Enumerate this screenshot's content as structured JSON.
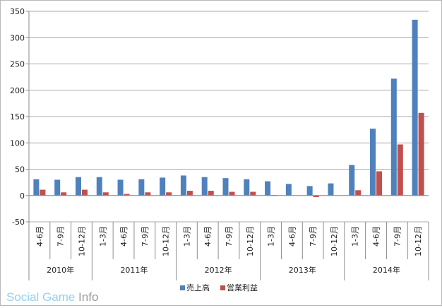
{
  "chart_data": {
    "type": "bar",
    "categories": [
      [
        "4-6月",
        "2010年"
      ],
      [
        "7-9月",
        "2010年"
      ],
      [
        "10-12月",
        "2010年"
      ],
      [
        "1-3月",
        "2011年"
      ],
      [
        "4-6月",
        "2011年"
      ],
      [
        "7-9月",
        "2011年"
      ],
      [
        "10-12月",
        "2011年"
      ],
      [
        "1-3月",
        "2012年"
      ],
      [
        "4-6月",
        "2012年"
      ],
      [
        "7-9月",
        "2012年"
      ],
      [
        "10-12月",
        "2012年"
      ],
      [
        "1-3月",
        "2013年"
      ],
      [
        "4-6月",
        "2013年"
      ],
      [
        "7-9月",
        "2013年"
      ],
      [
        "10-12月",
        "2013年"
      ],
      [
        "1-3月",
        "2014年"
      ],
      [
        "4-6月",
        "2014年"
      ],
      [
        "7-9月",
        "2014年"
      ],
      [
        "10-12月",
        "2014年"
      ]
    ],
    "quarters": [
      "4-6月",
      "7-9月",
      "10-12月",
      "1-3月",
      "4-6月",
      "7-9月",
      "10-12月",
      "1-3月",
      "4-6月",
      "7-9月",
      "10-12月",
      "1-3月",
      "4-6月",
      "7-9月",
      "10-12月",
      "1-3月",
      "4-6月",
      "7-9月",
      "10-12月"
    ],
    "years": [
      {
        "label": "2010年",
        "count": 3
      },
      {
        "label": "2011年",
        "count": 4
      },
      {
        "label": "2012年",
        "count": 4
      },
      {
        "label": "2013年",
        "count": 4
      },
      {
        "label": "2014年",
        "count": 4
      }
    ],
    "series": [
      {
        "name": "売上高",
        "color": "#4f81bd",
        "values": [
          31,
          30,
          35,
          35,
          30,
          31,
          34,
          38,
          35,
          33,
          31,
          27,
          22,
          18,
          23,
          58,
          127,
          222,
          334
        ]
      },
      {
        "name": "営業利益",
        "color": "#c0504d",
        "values": [
          11,
          6,
          11,
          6,
          3,
          6,
          6,
          9,
          9,
          7,
          7,
          1,
          0,
          -3,
          0,
          10,
          46,
          97,
          157
        ]
      }
    ],
    "ylim": [
      -50,
      350
    ],
    "yticks": [
      -50,
      0,
      50,
      100,
      150,
      200,
      250,
      300,
      350
    ],
    "ytick_labels": [
      "-50",
      "0",
      "50",
      "100",
      "150",
      "200",
      "250",
      "300",
      "350"
    ],
    "grid": true,
    "legend": "bottom"
  },
  "watermark": {
    "part1": "Social Game ",
    "part2": "Info"
  }
}
